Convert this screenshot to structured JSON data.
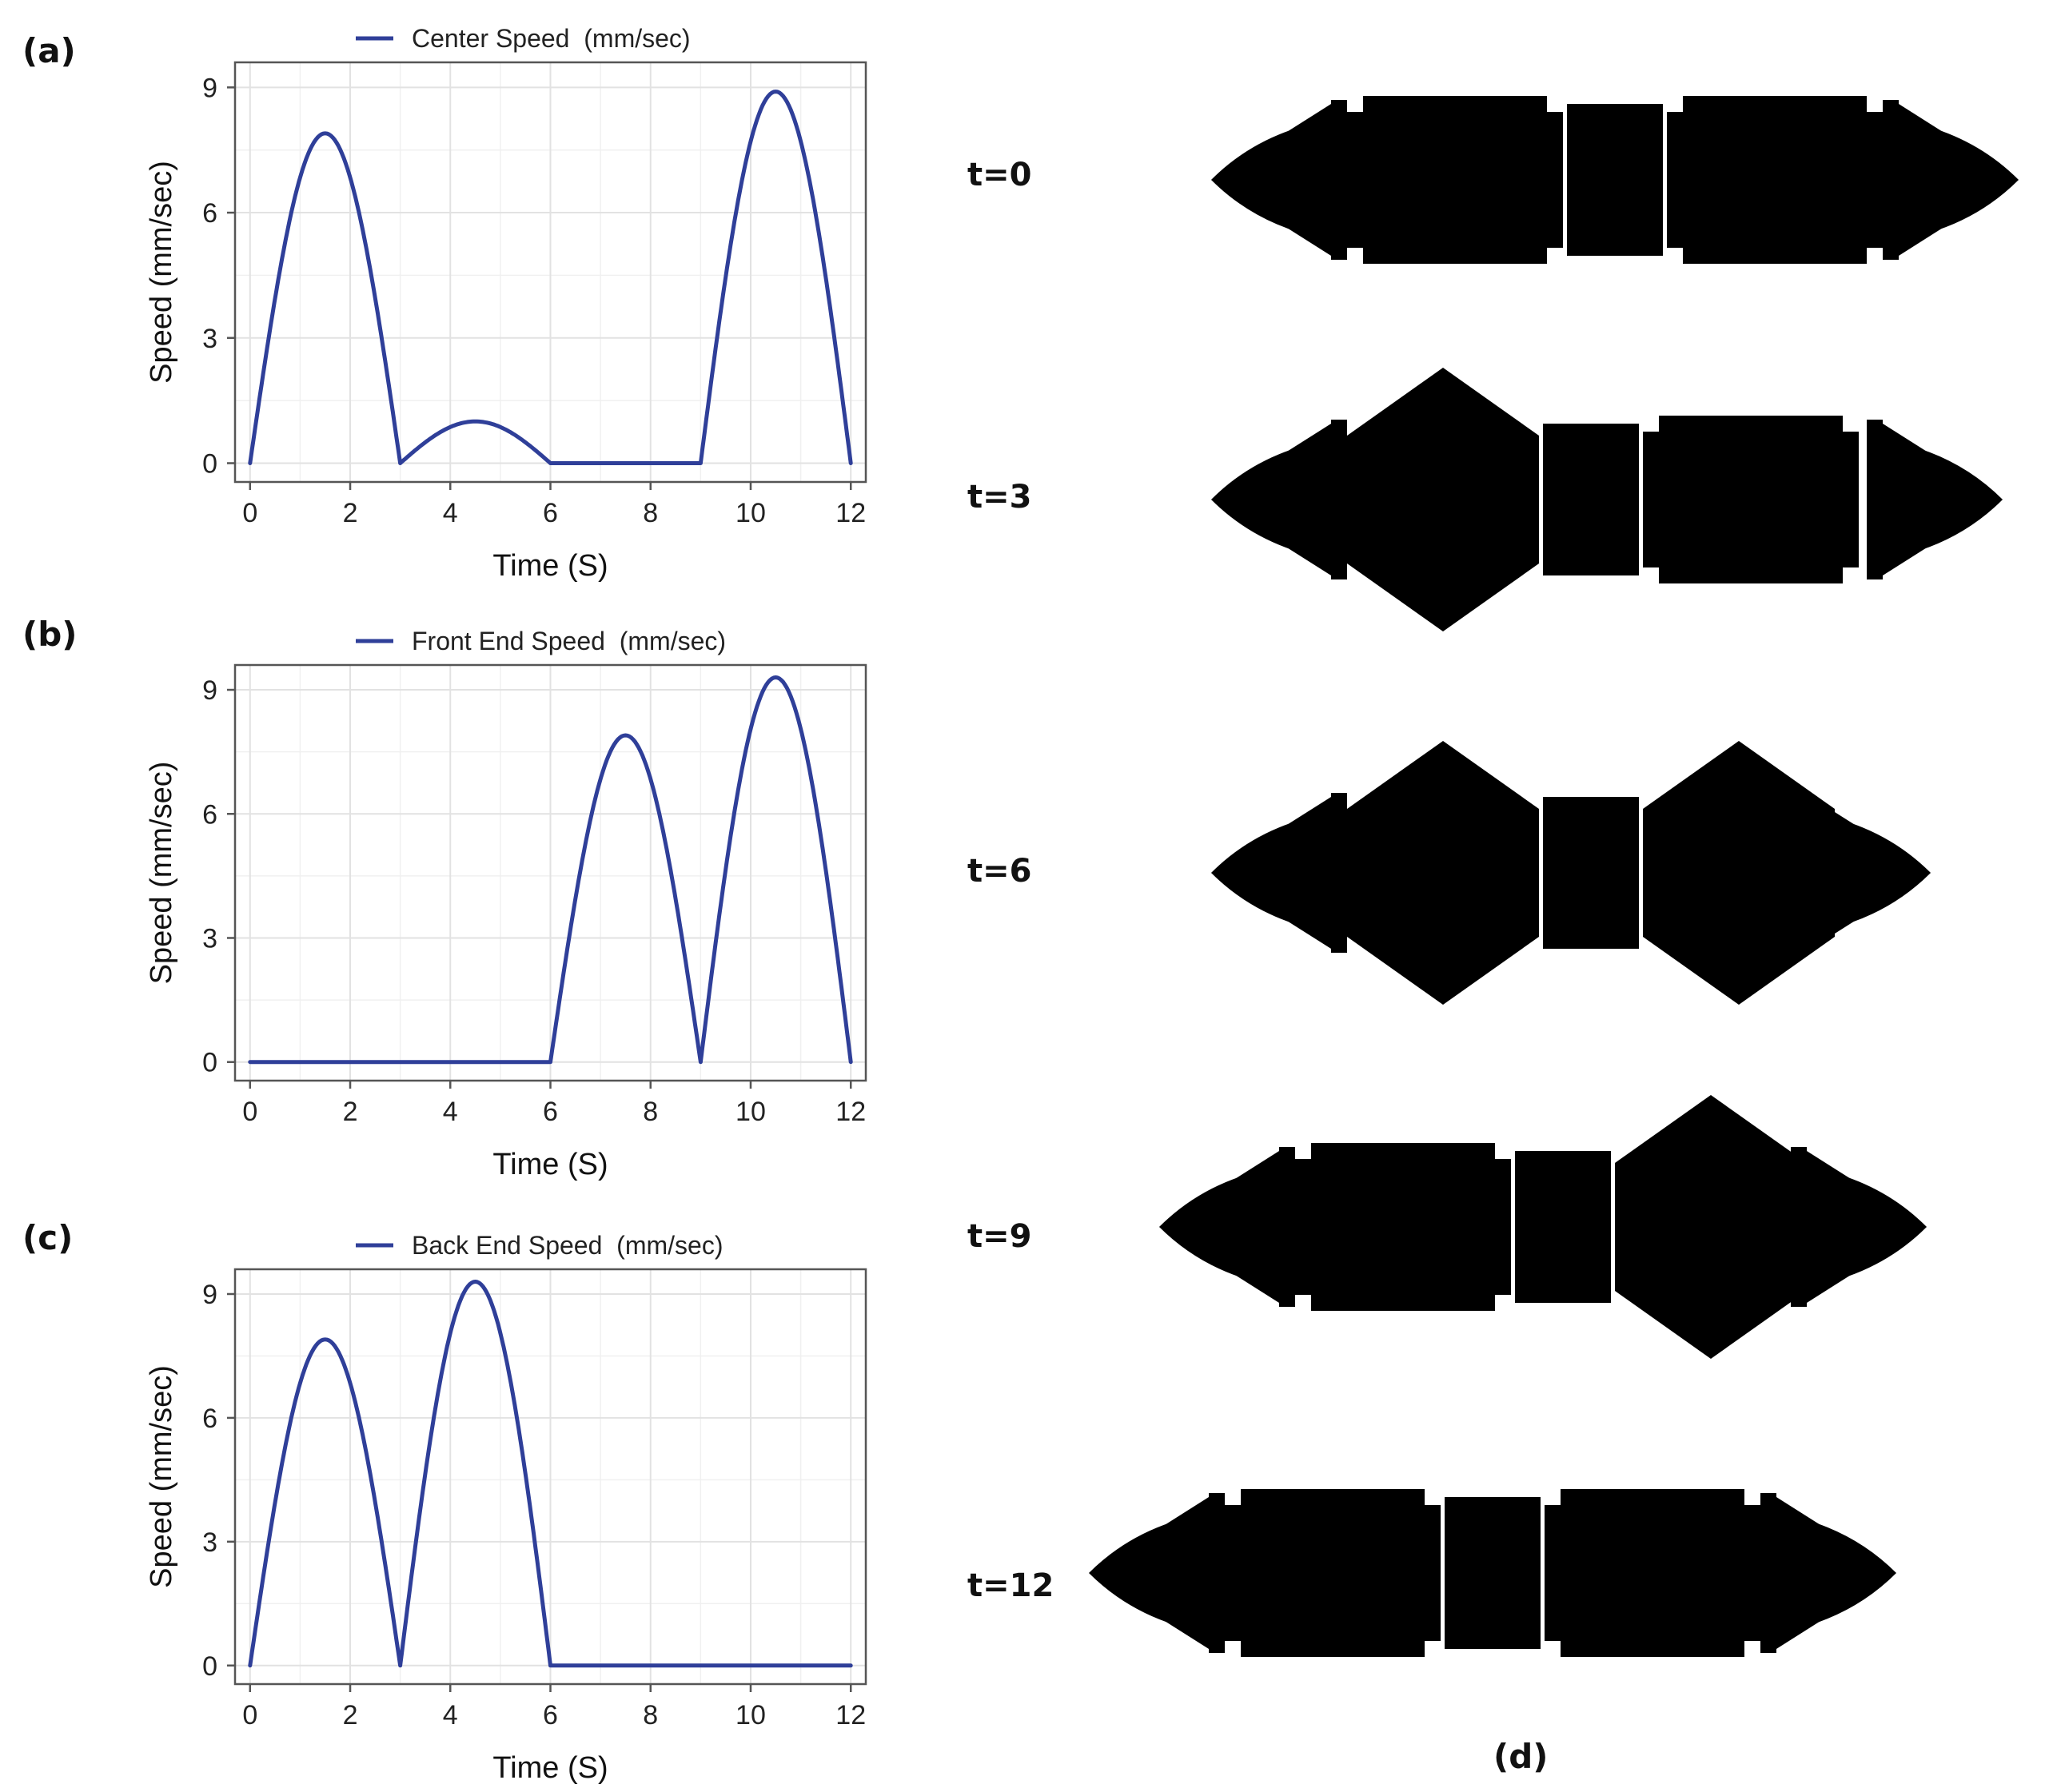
{
  "panels": {
    "a": "(a)",
    "b": "(b)",
    "c": "(c)",
    "d": "(d)"
  },
  "robot_states": [
    "t=0",
    "t=3",
    "t=6",
    "t=9",
    "t=12"
  ],
  "colors": {
    "line": "#2f3f99",
    "grid": "#e2e2e2",
    "frame": "#555555"
  },
  "chart_data": [
    {
      "type": "line",
      "panel": "(a)",
      "legend": "Center Speed  (mm/sec)",
      "xlabel": "Time (S)",
      "ylabel": "Speed (mm/sec)",
      "xlim": [
        -0.3,
        12.3
      ],
      "ylim": [
        -0.45,
        9.6
      ],
      "xticks": [
        0,
        2,
        4,
        6,
        8,
        10,
        12
      ],
      "yticks": [
        0,
        3,
        6,
        9
      ],
      "x": [
        0,
        0.75,
        1.5,
        2.25,
        3,
        3.75,
        4.5,
        5.25,
        6,
        7.5,
        9,
        9.75,
        10.5,
        11.25,
        12
      ],
      "y": [
        0,
        5.6,
        7.9,
        5.6,
        0,
        0.7,
        1.0,
        0.7,
        0,
        0,
        0,
        6.3,
        8.9,
        6.3,
        0
      ],
      "segments": [
        {
          "type": "sine",
          "x0": 0,
          "x1": 3,
          "peak": 7.9
        },
        {
          "type": "sine",
          "x0": 3,
          "x1": 6,
          "peak": 1.0
        },
        {
          "type": "flat",
          "x0": 6,
          "x1": 9
        },
        {
          "type": "sine",
          "x0": 9,
          "x1": 12,
          "peak": 8.9
        }
      ]
    },
    {
      "type": "line",
      "panel": "(b)",
      "legend": "Front End Speed  (mm/sec)",
      "xlabel": "Time (S)",
      "ylabel": "Speed (mm/sec)",
      "xlim": [
        -0.3,
        12.3
      ],
      "ylim": [
        -0.45,
        9.6
      ],
      "xticks": [
        0,
        2,
        4,
        6,
        8,
        10,
        12
      ],
      "yticks": [
        0,
        3,
        6,
        9
      ],
      "x": [
        0,
        3,
        6,
        6.75,
        7.5,
        8.25,
        9,
        9.75,
        10.5,
        11.25,
        12
      ],
      "y": [
        0,
        0,
        0,
        5.6,
        7.9,
        5.6,
        0,
        6.6,
        9.3,
        6.6,
        0
      ],
      "segments": [
        {
          "type": "flat",
          "x0": 0,
          "x1": 6
        },
        {
          "type": "sine",
          "x0": 6,
          "x1": 9,
          "peak": 7.9
        },
        {
          "type": "sine",
          "x0": 9,
          "x1": 12,
          "peak": 9.3
        }
      ]
    },
    {
      "type": "line",
      "panel": "(c)",
      "legend": "Back End Speed  (mm/sec)",
      "xlabel": "Time (S)",
      "ylabel": "Speed (mm/sec)",
      "xlim": [
        -0.3,
        12.3
      ],
      "ylim": [
        -0.45,
        9.6
      ],
      "xticks": [
        0,
        2,
        4,
        6,
        8,
        10,
        12
      ],
      "yticks": [
        0,
        3,
        6,
        9
      ],
      "x": [
        0,
        0.75,
        1.5,
        2.25,
        3,
        3.75,
        4.5,
        5.25,
        6,
        9,
        12
      ],
      "y": [
        0,
        5.6,
        7.9,
        5.6,
        0,
        6.6,
        9.3,
        6.6,
        0,
        0,
        0
      ],
      "segments": [
        {
          "type": "sine",
          "x0": 0,
          "x1": 3,
          "peak": 7.9
        },
        {
          "type": "sine",
          "x0": 3,
          "x1": 6,
          "peak": 9.3
        },
        {
          "type": "flat",
          "x0": 6,
          "x1": 12
        }
      ]
    }
  ]
}
